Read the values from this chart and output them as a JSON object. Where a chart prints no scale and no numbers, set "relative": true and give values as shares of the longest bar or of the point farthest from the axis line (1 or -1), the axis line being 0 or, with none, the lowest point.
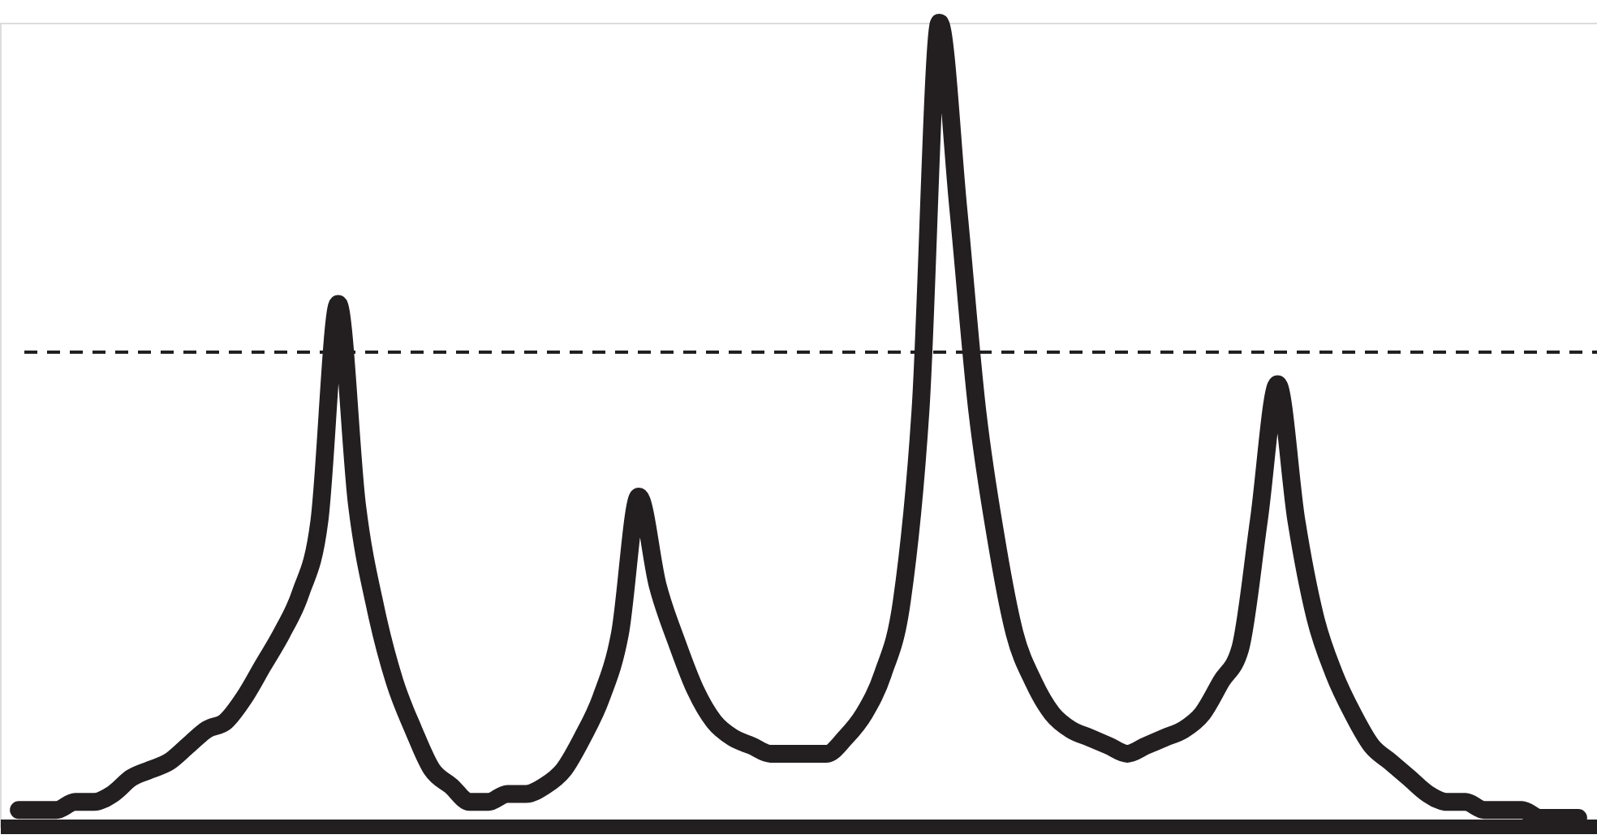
{
  "chart_data": {
    "type": "line",
    "relative": true,
    "categories": [
      null,
      null,
      null,
      null,
      null,
      null,
      null,
      null,
      null,
      null,
      null,
      null,
      null,
      null,
      null,
      null,
      null,
      null,
      null,
      null,
      null,
      null,
      null,
      null,
      null,
      null,
      null,
      null,
      null,
      null,
      null,
      null,
      null,
      null,
      null,
      null,
      null,
      null,
      null,
      null,
      null,
      null,
      null,
      null,
      null,
      null,
      null,
      null,
      null,
      null,
      null,
      null,
      null,
      null,
      null,
      null,
      null,
      null,
      null,
      null,
      null,
      null,
      null,
      null,
      null,
      null,
      null,
      null,
      null,
      null,
      null,
      null,
      null,
      null,
      null,
      null,
      null,
      null,
      null,
      null,
      null,
      null,
      null,
      null
    ],
    "series": [
      {
        "color": "#231f20",
        "values": [
          0.02,
          0.02,
          0.02,
          0.03,
          0.03,
          0.04,
          0.06,
          0.07,
          0.08,
          0.1,
          0.12,
          0.13,
          0.16,
          0.2,
          0.24,
          0.29,
          0.38,
          0.65,
          0.4,
          0.27,
          0.18,
          0.12,
          0.07,
          0.05,
          0.03,
          0.03,
          0.04,
          0.04,
          0.05,
          0.07,
          0.11,
          0.16,
          0.24,
          0.41,
          0.3,
          0.23,
          0.17,
          0.13,
          0.11,
          0.1,
          0.09,
          0.09,
          0.09,
          0.09,
          0.11,
          0.14,
          0.19,
          0.28,
          0.52,
          1,
          0.77,
          0.52,
          0.36,
          0.24,
          0.18,
          0.14,
          0.12,
          0.11,
          0.1,
          0.09,
          0.1,
          0.11,
          0.12,
          0.14,
          0.18,
          0.22,
          0.38,
          0.55,
          0.38,
          0.26,
          0.19,
          0.14,
          0.1,
          0.08,
          0.06,
          0.04,
          0.03,
          0.03,
          0.02,
          0.02,
          0.02,
          0.01,
          0.01,
          0.01
        ]
      }
    ],
    "ref_lines": [
      {
        "axis": "y",
        "value": 0.59,
        "color": "#231f20",
        "line_style": "dashed"
      }
    ],
    "grid": false,
    "tick_labels": false,
    "line_style": "solid"
  }
}
